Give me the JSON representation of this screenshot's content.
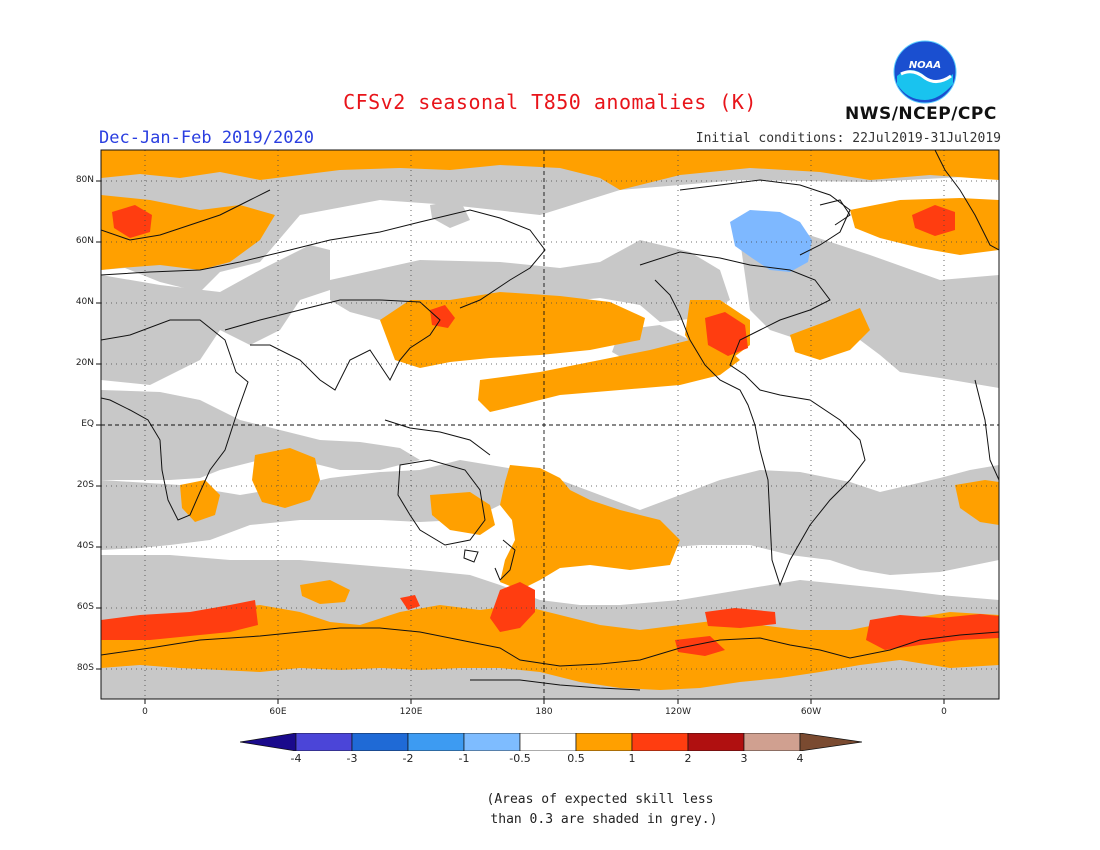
{
  "title": "CFSv2 seasonal T850 anomalies (K)",
  "season": "Dec-Jan-Feb 2019/2020",
  "initial_conditions": "Initial conditions: 22Jul2019-31Jul2019",
  "agency": "NWS/NCEP/CPC",
  "logo_text": "NOAA",
  "map": {
    "lat_labels": [
      "80N",
      "60N",
      "40N",
      "20N",
      "EQ",
      "20S",
      "40S",
      "60S",
      "80S"
    ],
    "lon_labels": [
      "0",
      "60E",
      "120E",
      "180",
      "120W",
      "60W",
      "0"
    ],
    "colors": {
      "grey_low_skill": "#c8c8c8",
      "positive_0_5_1": "#ffa000",
      "positive_1_2": "#ff3d10",
      "negative_1_0_5": "#7eb8ff",
      "neutral": "#ffffff"
    }
  },
  "colorbar": {
    "tick_labels": [
      "-4",
      "-3",
      "-2",
      "-1",
      "-0.5",
      "0.5",
      "1",
      "2",
      "3",
      "4"
    ],
    "colors": [
      "#1a0a8c",
      "#4b45d8",
      "#1f6ad6",
      "#3d9bf2",
      "#7ebcff",
      "#ffffff",
      "#ffa000",
      "#ff3d10",
      "#b01010",
      "#d0a090",
      "#7a4a30"
    ]
  },
  "footnote": "(Areas of expected skill less\n than 0.3 are shaded in grey.)"
}
